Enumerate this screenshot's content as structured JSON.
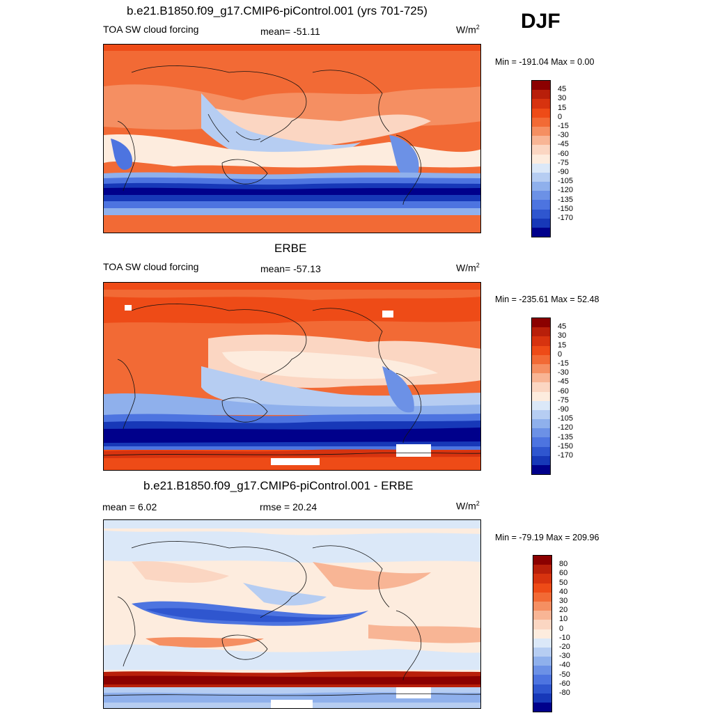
{
  "season": "DJF",
  "panels": [
    {
      "title": "b.e21.B1850.f09_g17.CMIP6-piControl.001 (yrs 701-725)",
      "left_label": "TOA SW cloud forcing",
      "center_label": "mean= -51.11",
      "units": "W/m",
      "units_sup": "2",
      "minmax": "Min = -191.04 Max =   0.00",
      "colorbar": "absolute"
    },
    {
      "title": "ERBE",
      "left_label": "TOA SW cloud forcing",
      "center_label": "mean= -57.13",
      "units": "W/m",
      "units_sup": "2",
      "minmax": "Min = -235.61 Max =  52.48",
      "colorbar": "absolute"
    },
    {
      "title": "b.e21.B1850.f09_g17.CMIP6-piControl.001 - ERBE",
      "left_label": "mean =   6.02",
      "center_label": "rmse =  20.24",
      "units": "W/m",
      "units_sup": "2",
      "minmax": "Min = -79.19 Max = 209.96",
      "colorbar": "difference"
    }
  ],
  "chart_data": [
    {
      "type": "heatmap",
      "title": "b.e21.B1850.f09_g17.CMIP6-piControl.001 (yrs 701-725)",
      "variable": "TOA SW cloud forcing",
      "units": "W/m2",
      "mean": -51.11,
      "min": -191.04,
      "max": 0.0,
      "colorbar_levels": [
        45,
        30,
        15,
        0,
        -15,
        -30,
        -45,
        -60,
        -75,
        -90,
        -105,
        -120,
        -135,
        -150,
        -170
      ],
      "colors": [
        "#8b0000",
        "#b81f0a",
        "#d7330f",
        "#ee4b17",
        "#f26a35",
        "#f58f62",
        "#f8b595",
        "#fbd6c2",
        "#fdecde",
        "#dbe8f8",
        "#b6cdf2",
        "#8fb0ec",
        "#6c91e6",
        "#4d74e0",
        "#2f56cf",
        "#1738b8",
        "#00008b"
      ]
    },
    {
      "type": "heatmap",
      "title": "ERBE",
      "variable": "TOA SW cloud forcing",
      "units": "W/m2",
      "mean": -57.13,
      "min": -235.61,
      "max": 52.48,
      "colorbar_levels": [
        45,
        30,
        15,
        0,
        -15,
        -30,
        -45,
        -60,
        -75,
        -90,
        -105,
        -120,
        -135,
        -150,
        -170
      ]
    },
    {
      "type": "heatmap",
      "title": "b.e21.B1850.f09_g17.CMIP6-piControl.001 - ERBE",
      "units": "W/m2",
      "mean": 6.02,
      "rmse": 20.24,
      "min": -79.19,
      "max": 209.96,
      "colorbar_levels": [
        80,
        60,
        50,
        40,
        30,
        20,
        10,
        0,
        -10,
        -20,
        -30,
        -40,
        -50,
        -60,
        -80
      ],
      "colors": [
        "#8b0000",
        "#b81f0a",
        "#d7330f",
        "#ee4b17",
        "#f26a35",
        "#f58f62",
        "#f8b595",
        "#fbd6c2",
        "#fdecde",
        "#dbe8f8",
        "#b6cdf2",
        "#8fb0ec",
        "#6c91e6",
        "#4d74e0",
        "#2f56cf",
        "#1738b8",
        "#00008b"
      ]
    }
  ]
}
